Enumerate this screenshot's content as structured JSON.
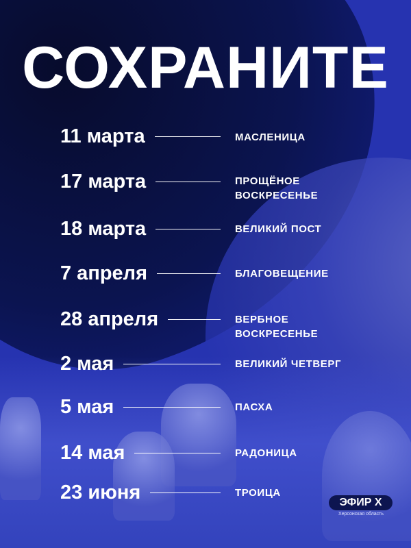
{
  "title": "СОХРАНИТЕ",
  "colors": {
    "background": "#2633b0",
    "dark_blob": "#0b1450",
    "text": "#ffffff"
  },
  "events": [
    {
      "date": "11 марта",
      "name": "Масленица"
    },
    {
      "date": "17 марта",
      "name": "Прощёное воскресенье"
    },
    {
      "date": "18 марта",
      "name": "Великий пост"
    },
    {
      "date": "7 апреля",
      "name": "Благовещение"
    },
    {
      "date": "28 апреля",
      "name": "Вербное воскресенье"
    },
    {
      "date": "2 мая",
      "name": "Великий четверг"
    },
    {
      "date": "5 мая",
      "name": "Пасха"
    },
    {
      "date": "14 мая",
      "name": "Радоница"
    },
    {
      "date": "23 июня",
      "name": "Троица"
    }
  ],
  "logo": {
    "name": "ЭФИР X",
    "subtitle": "Херсонская область"
  }
}
